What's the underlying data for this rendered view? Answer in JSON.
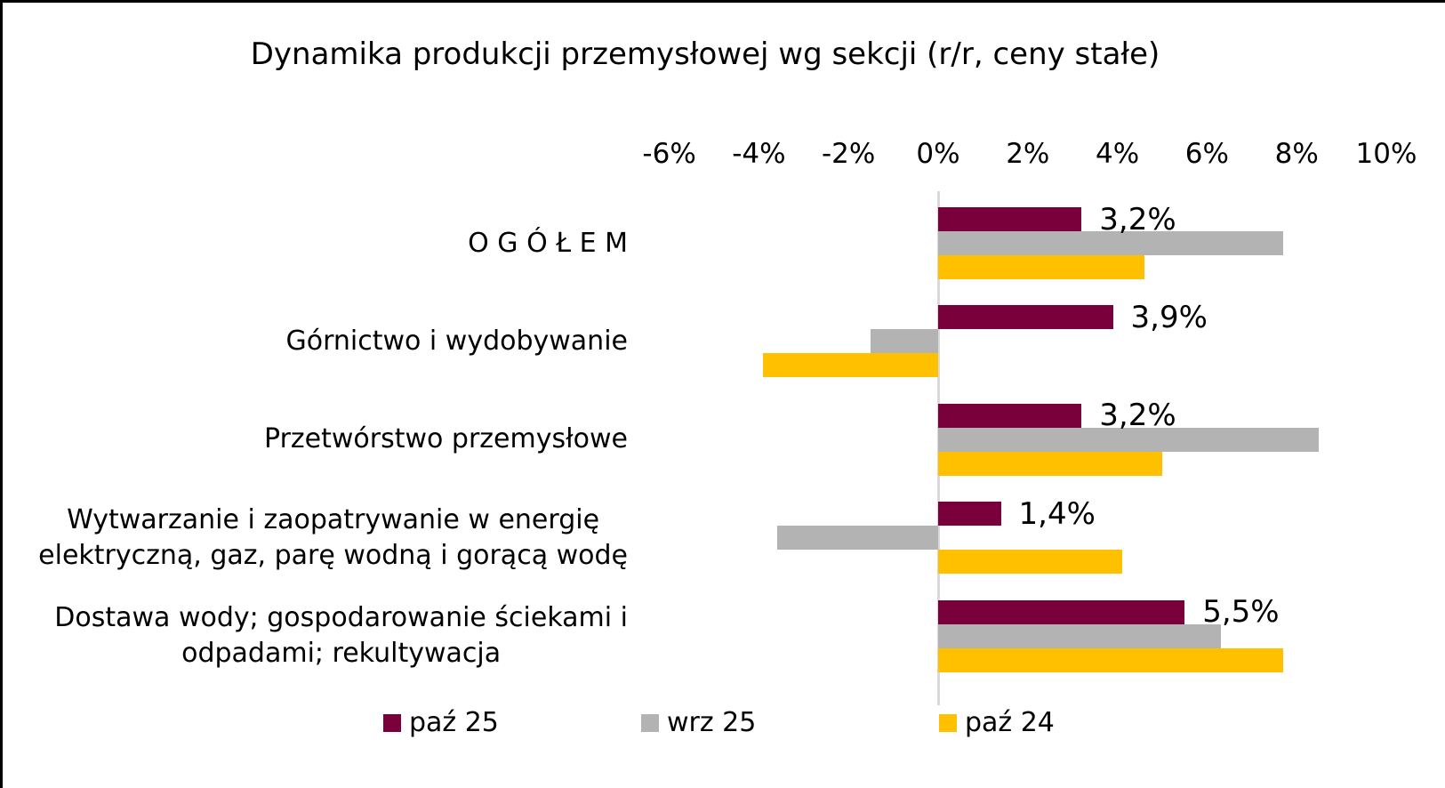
{
  "page": {
    "background": "#FFFFFF",
    "frame_border_color": "#000000"
  },
  "chart_data": {
    "type": "bar",
    "orientation": "horizontal",
    "title": "Dynamika produkcji przemysłowej wg sekcji (r/r, ceny stałe)",
    "grid": false,
    "legend_position": "bottom",
    "x_axis": {
      "min": -6,
      "max": 10,
      "tick_step": 2,
      "zero_line_color": "#D9D9D9",
      "ticks": [
        {
          "value": -6,
          "label": "-6%"
        },
        {
          "value": -4,
          "label": "-4%"
        },
        {
          "value": -2,
          "label": "-2%"
        },
        {
          "value": 0,
          "label": "0%"
        },
        {
          "value": 2,
          "label": "2%"
        },
        {
          "value": 4,
          "label": "4%"
        },
        {
          "value": 6,
          "label": "6%"
        },
        {
          "value": 8,
          "label": "8%"
        },
        {
          "value": 10,
          "label": "10%"
        }
      ]
    },
    "categories": [
      "O G Ó Ł E M",
      "Górnictwo i wydobywanie",
      "Przetwórstwo przemysłowe",
      "Wytwarzanie i zaopatrywanie w energię elektryczną, gaz, parę wodną i gorącą wodę",
      "Dostawa wody; gospodarowanie ściekami i odpadami; rekultywacja"
    ],
    "category_display": [
      "O G Ó Ł E M",
      "Górnictwo i wydobywanie",
      "Przetwórstwo przemysłowe",
      "Wytwarzanie i zaopatrywanie w energię\nelektryczną, gaz, parę wodną i gorącą wodę",
      "Dostawa wody; gospodarowanie ściekami i\nodpadami; rekultywacja"
    ],
    "series": [
      {
        "name": "paź 25",
        "color": "#7A003C",
        "values": [
          3.2,
          3.9,
          3.2,
          1.4,
          5.5
        ],
        "data_labels": [
          "3,2%",
          "3,9%",
          "3,2%",
          "1,4%",
          "5,5%"
        ]
      },
      {
        "name": "wrz 25",
        "color": "#B3B3B3",
        "values": [
          7.7,
          -1.5,
          8.5,
          -3.6,
          6.3
        ],
        "data_labels": []
      },
      {
        "name": "paź 24",
        "color": "#FFC000",
        "values": [
          4.6,
          -3.9,
          5.0,
          4.1,
          7.7
        ],
        "data_labels": []
      }
    ],
    "legend": {
      "items": [
        "paź 25",
        "wrz 25",
        "paź 24"
      ]
    }
  }
}
